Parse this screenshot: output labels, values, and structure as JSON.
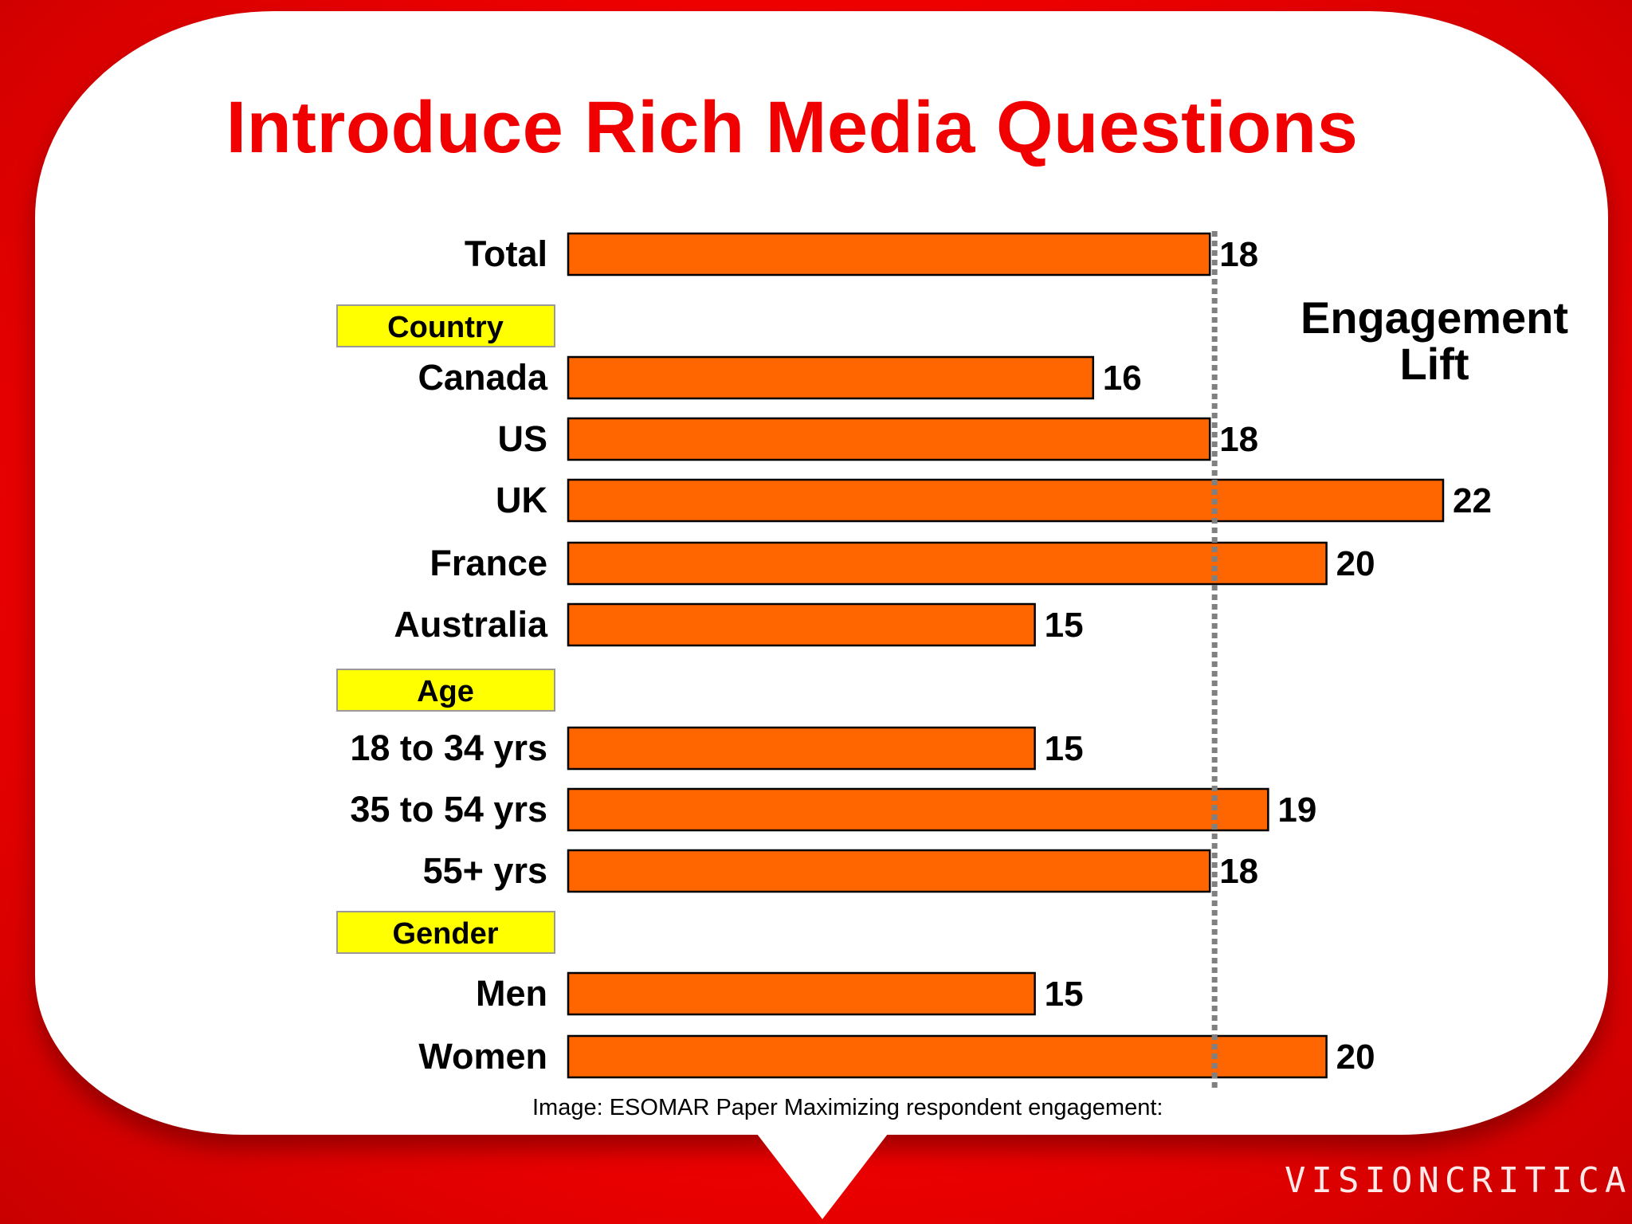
{
  "title": "Introduce Rich Media Questions",
  "annotation": [
    "Engagement",
    "Lift"
  ],
  "caption": "Image: ESOMAR Paper Maximizing respondent engagement:",
  "logo": "VISIONCRITICAL™",
  "colors": {
    "bar": "#ff6600",
    "title": "#f00000",
    "group_label_bg": "#ffff00",
    "background": "#f00000",
    "reference_line": "#808080"
  },
  "chart_data": {
    "type": "bar",
    "orientation": "horizontal",
    "title": "Introduce Rich Media Questions",
    "rows": [
      {
        "kind": "bar",
        "label": "Total",
        "value": 18
      },
      {
        "kind": "group",
        "label": "Country"
      },
      {
        "kind": "bar",
        "label": "Canada",
        "value": 16
      },
      {
        "kind": "bar",
        "label": "US",
        "value": 18
      },
      {
        "kind": "bar",
        "label": "UK",
        "value": 22
      },
      {
        "kind": "bar",
        "label": "France",
        "value": 20
      },
      {
        "kind": "bar",
        "label": "Australia",
        "value": 15
      },
      {
        "kind": "group",
        "label": "Age"
      },
      {
        "kind": "bar",
        "label": "18 to 34 yrs",
        "value": 15
      },
      {
        "kind": "bar",
        "label": "35 to 54 yrs",
        "value": 19
      },
      {
        "kind": "bar",
        "label": "55+ yrs",
        "value": 18
      },
      {
        "kind": "group",
        "label": "Gender"
      },
      {
        "kind": "bar",
        "label": "Men",
        "value": 15
      },
      {
        "kind": "bar",
        "label": "Women",
        "value": 20
      }
    ],
    "reference_line": 18,
    "xlim": [
      7,
      23
    ],
    "grid": false,
    "data_labels": true
  }
}
